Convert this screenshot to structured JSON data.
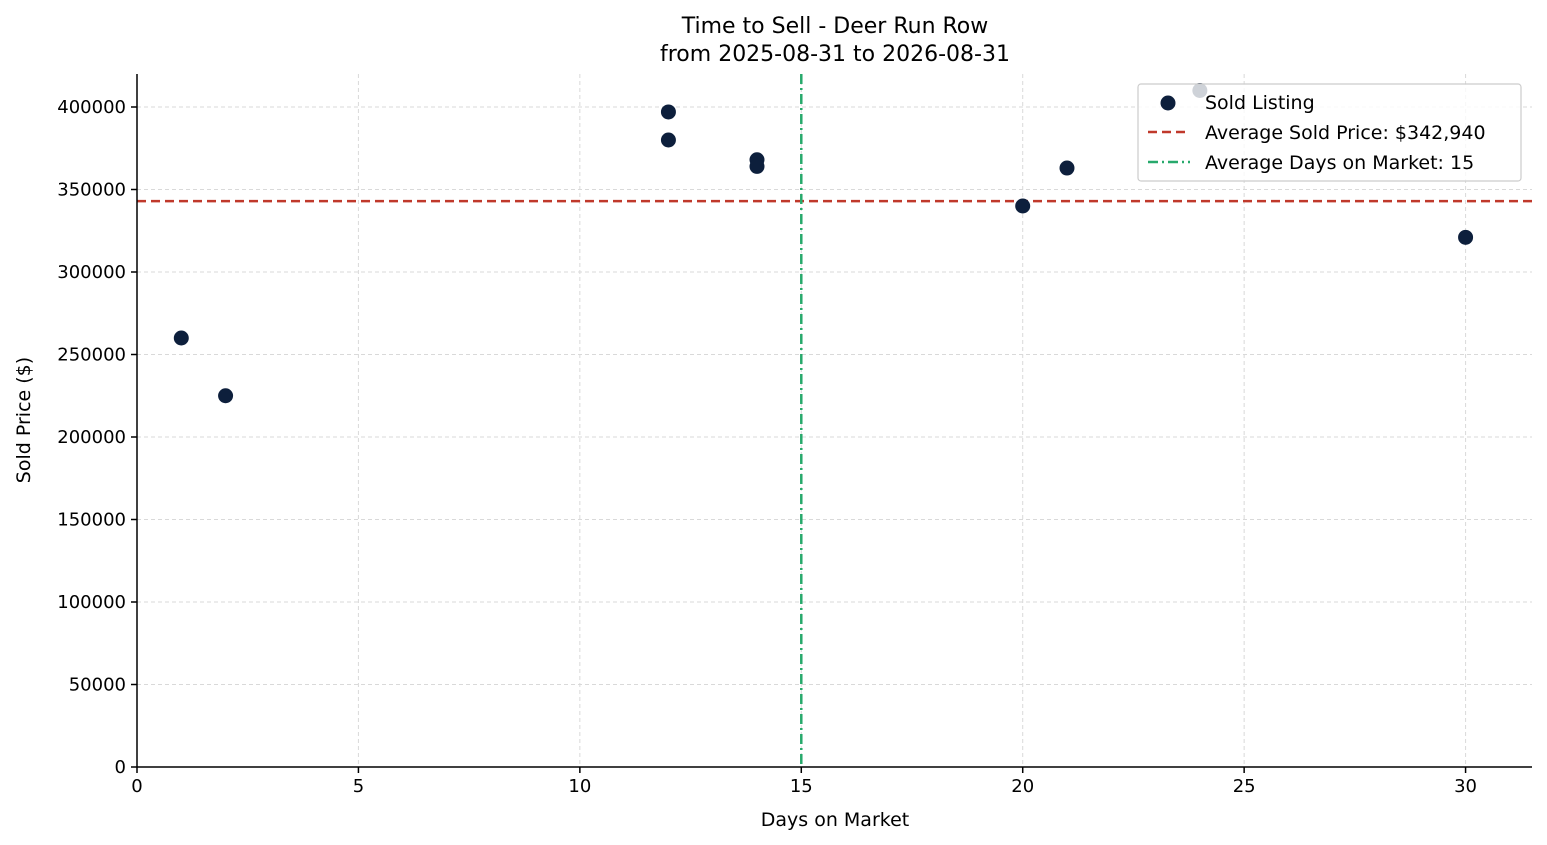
{
  "chart_data": {
    "type": "scatter",
    "title": "Time to Sell - Deer Run Row",
    "subtitle": "from 2025-08-31 to 2026-08-31",
    "xlabel": "Days on Market",
    "ylabel": "Sold Price ($)",
    "xlim": [
      0,
      31.5
    ],
    "ylim": [
      0,
      420000
    ],
    "xticks": [
      0,
      5,
      10,
      15,
      20,
      25,
      30
    ],
    "yticks": [
      0,
      50000,
      100000,
      150000,
      200000,
      250000,
      300000,
      350000,
      400000
    ],
    "grid": true,
    "legend_position": "top-right",
    "colors": {
      "points": "#0d1f3c",
      "average_price_line": "#c0392b",
      "average_days_line": "#27a96c"
    },
    "series": [
      {
        "name": "Sold Listing",
        "points": [
          {
            "x": 1,
            "y": 260000
          },
          {
            "x": 2,
            "y": 225000
          },
          {
            "x": 12,
            "y": 397000
          },
          {
            "x": 12,
            "y": 380000
          },
          {
            "x": 14,
            "y": 368000
          },
          {
            "x": 14,
            "y": 364000
          },
          {
            "x": 20,
            "y": 340000
          },
          {
            "x": 21,
            "y": 363000
          },
          {
            "x": 24,
            "y": 410000
          },
          {
            "x": 30,
            "y": 321000
          }
        ]
      }
    ],
    "reference_lines": [
      {
        "name": "Average Sold Price: $342,940",
        "orientation": "horizontal",
        "value": 342940,
        "style": "dashed"
      },
      {
        "name": "Average Days on Market: 15",
        "orientation": "vertical",
        "value": 15,
        "style": "dashdot"
      }
    ]
  }
}
